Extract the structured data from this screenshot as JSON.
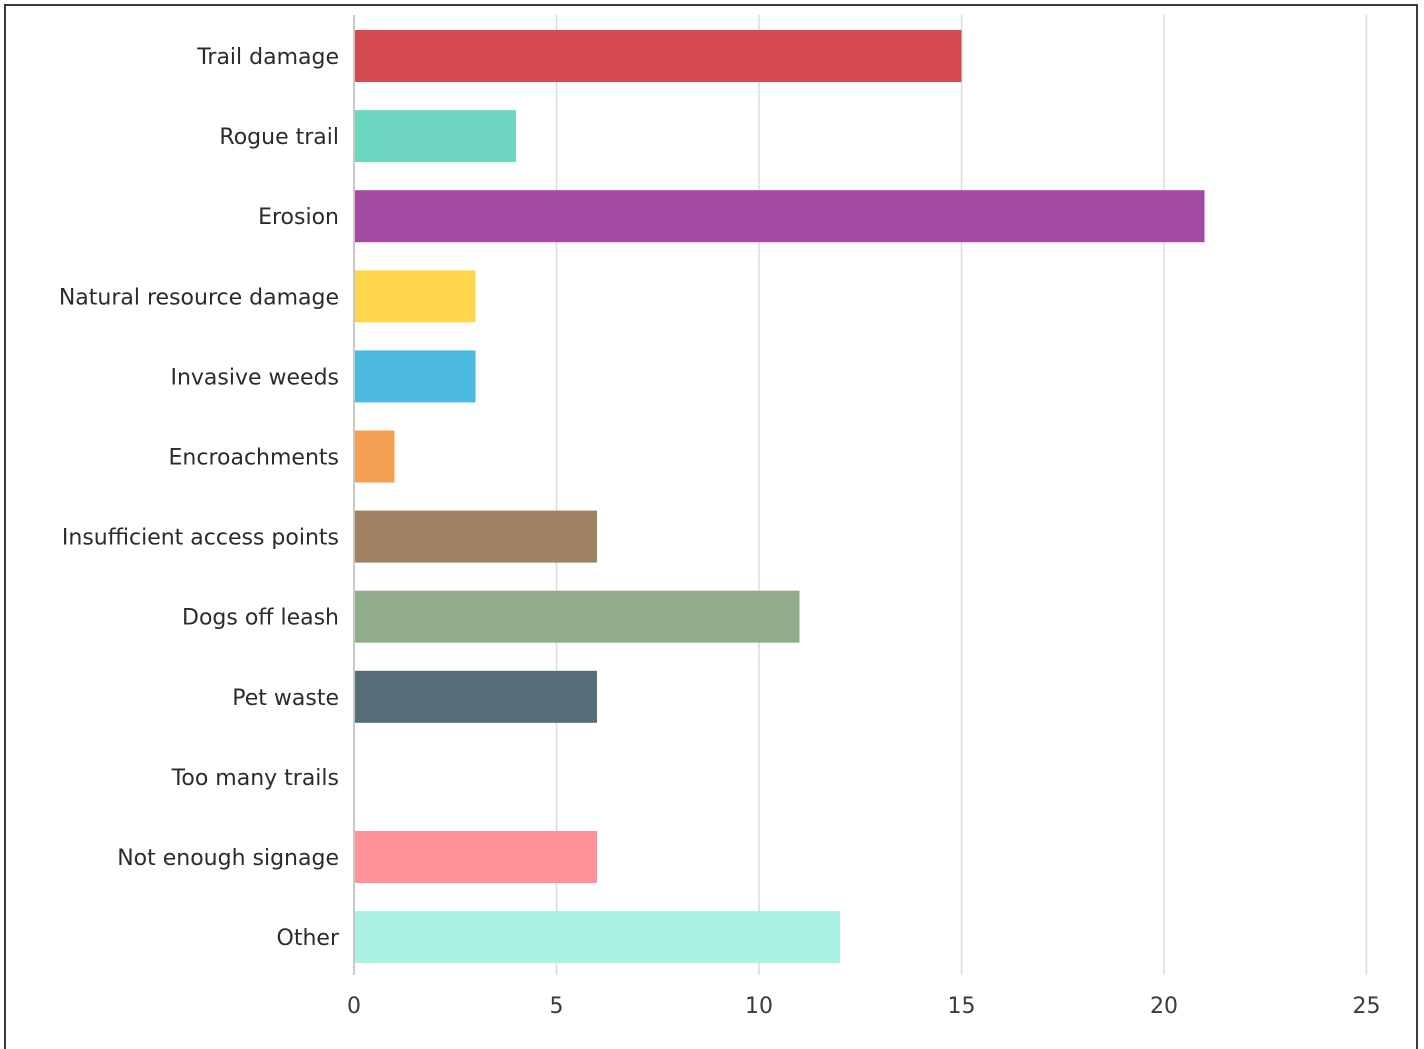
{
  "chart_data": {
    "type": "bar",
    "orientation": "horizontal",
    "categories": [
      "Trail damage",
      "Rogue trail",
      "Erosion",
      "Natural resource damage",
      "Invasive weeds",
      "Encroachments",
      "Insufficient access points",
      "Dogs off leash",
      "Pet waste",
      "Too many trails",
      "Not enough signage",
      "Other"
    ],
    "values": [
      15,
      4,
      21,
      3,
      3,
      1,
      6,
      11,
      6,
      0,
      6,
      12
    ],
    "colors": [
      "#d44a4f",
      "#6dd7c2",
      "#a34ba3",
      "#fed54b",
      "#4cbae0",
      "#f4a052",
      "#a08264",
      "#92ad8b",
      "#556e77",
      "#cccccc",
      "#fe919a",
      "#abf2e4"
    ],
    "xlim": [
      0,
      25
    ],
    "xticks": [
      "0",
      "5",
      "10",
      "15",
      "20",
      "25"
    ],
    "grid": "vertical",
    "title": "",
    "xlabel": "",
    "ylabel": ""
  }
}
